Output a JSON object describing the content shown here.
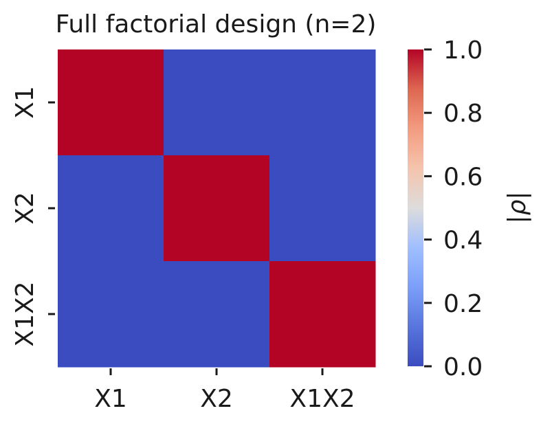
{
  "chart_data": {
    "type": "heatmap",
    "title": "Full factorial design (n=2)",
    "x_categories": [
      "X1",
      "X2",
      "X1X2"
    ],
    "y_categories": [
      "X1",
      "X2",
      "X1X2"
    ],
    "values": [
      [
        1.0,
        0.0,
        0.0
      ],
      [
        0.0,
        1.0,
        0.0
      ],
      [
        0.0,
        0.0,
        1.0
      ]
    ],
    "colorbar": {
      "label": "|ρ|",
      "range": [
        0.0,
        1.0
      ],
      "ticks": [
        "0.0",
        "0.2",
        "0.4",
        "0.6",
        "0.8",
        "1.0"
      ],
      "colormap": "coolwarm",
      "color_low": "#3b4cc0",
      "color_high": "#b40426"
    },
    "xlabel": "",
    "ylabel": ""
  }
}
